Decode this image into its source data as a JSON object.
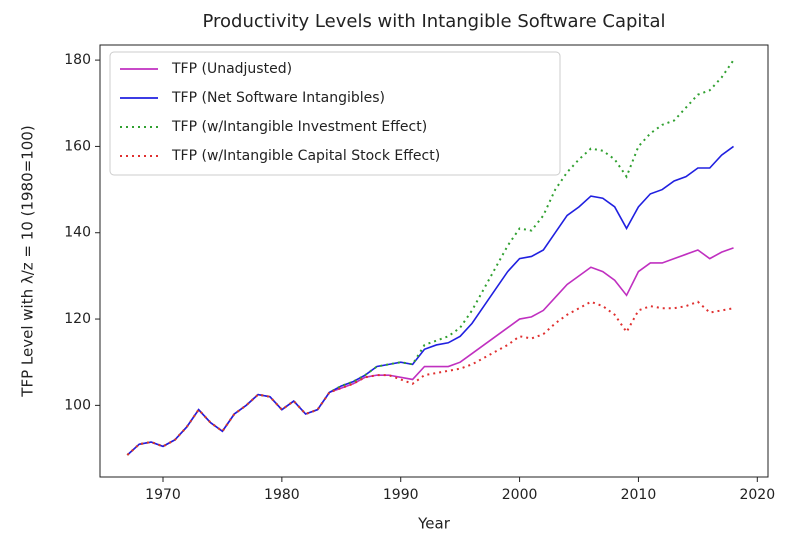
{
  "chart_data": {
    "type": "line",
    "title": "Productivity Levels with Intangible Software Capital",
    "xlabel": "Year",
    "ylabel": "TFP Level with λ/z = 10 (1980=100)",
    "x": [
      1967,
      1968,
      1969,
      1970,
      1971,
      1972,
      1973,
      1974,
      1975,
      1976,
      1977,
      1978,
      1979,
      1980,
      1981,
      1982,
      1983,
      1984,
      1985,
      1986,
      1987,
      1988,
      1989,
      1990,
      1991,
      1992,
      1993,
      1994,
      1995,
      1996,
      1997,
      1998,
      1999,
      2000,
      2001,
      2002,
      2003,
      2004,
      2005,
      2006,
      2007,
      2008,
      2009,
      2010,
      2011,
      2012,
      2013,
      2014,
      2015,
      2016,
      2017,
      2018
    ],
    "series": [
      {
        "name": "TFP (Unadjusted)",
        "color": "#c030c0",
        "linestyle": "solid",
        "values": [
          88.5,
          91,
          91.5,
          90.5,
          92,
          95,
          99,
          96,
          94,
          98,
          100,
          102.5,
          102,
          99,
          101,
          98,
          99,
          103,
          104,
          105,
          106.5,
          107,
          107,
          106.5,
          106,
          109,
          109,
          109,
          110,
          112,
          114,
          116,
          118,
          120,
          120.5,
          122,
          125,
          128,
          130,
          132,
          131,
          129,
          125.5,
          131,
          133,
          133,
          134,
          135,
          136,
          134,
          135.5,
          136.5
        ]
      },
      {
        "name": "TFP (Net Software Intangibles)",
        "color": "#2020e0",
        "linestyle": "solid",
        "values": [
          88.5,
          91,
          91.5,
          90.5,
          92,
          95,
          99,
          96,
          94,
          98,
          100,
          102.5,
          102,
          99,
          101,
          98,
          99,
          103,
          104.5,
          105.5,
          107,
          109,
          109.5,
          110,
          109.5,
          113,
          114,
          114.5,
          116,
          119,
          123,
          127,
          131,
          134,
          134.5,
          136,
          140,
          144,
          146,
          148.5,
          148,
          146,
          141,
          146,
          149,
          150,
          152,
          153,
          155,
          155,
          158,
          160
        ]
      },
      {
        "name": "TFP (w/Intangible Investment Effect)",
        "color": "#30a030",
        "linestyle": "dotted",
        "values": [
          88.5,
          91,
          91.5,
          90.5,
          92,
          95,
          99,
          96,
          94,
          98,
          100,
          102.5,
          102,
          99,
          101,
          98,
          99,
          103,
          104.5,
          105.5,
          107,
          109,
          109.5,
          110,
          109.5,
          114,
          115,
          116,
          118,
          122,
          127,
          132,
          137,
          141,
          140.5,
          144,
          150,
          154,
          157,
          159.5,
          159,
          157,
          153,
          160,
          163,
          165,
          166,
          169,
          172,
          173,
          176,
          180
        ]
      },
      {
        "name": "TFP (w/Intangible Capital Stock Effect)",
        "color": "#e03030",
        "linestyle": "dotted",
        "values": [
          88.5,
          91,
          91.5,
          90.5,
          92,
          95,
          99,
          96,
          94,
          98,
          100,
          102.5,
          102,
          99,
          101,
          98,
          99,
          103,
          104,
          105,
          106.5,
          107,
          107,
          106,
          105,
          107,
          107.5,
          108,
          108.5,
          109.5,
          111,
          112.5,
          114,
          116,
          115.5,
          116.5,
          119,
          121,
          122.5,
          124,
          123,
          121,
          117,
          122,
          123,
          122.5,
          122.5,
          123,
          124,
          121.5,
          122,
          122.5
        ]
      }
    ],
    "xlim": [
      1964.7,
      2020.9
    ],
    "xticks": [
      1970,
      1980,
      1990,
      2000,
      2010,
      2020
    ],
    "ylim": [
      83.4,
      183.5
    ],
    "yticks": [
      100,
      120,
      140,
      160,
      180
    ],
    "legend": "upper left"
  }
}
